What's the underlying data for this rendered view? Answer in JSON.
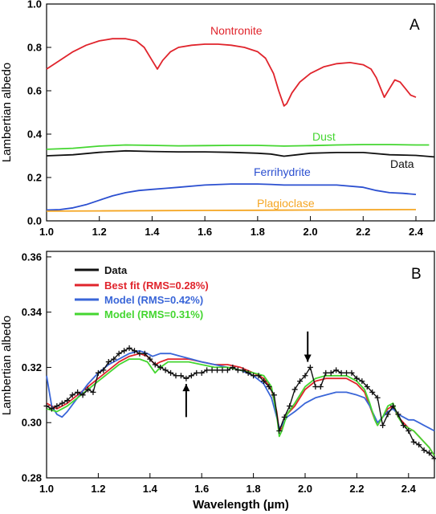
{
  "chart_data": [
    {
      "type": "line",
      "panel_label": "A",
      "ylabel": "Lambertian albedo",
      "xlim": [
        1.0,
        2.47
      ],
      "ylim": [
        0.0,
        1.0
      ],
      "x_ticks": [
        "1.0",
        "1.2",
        "1.4",
        "1.6",
        "1.8",
        "2.0",
        "2.2",
        "2.4"
      ],
      "x_tick_values": [
        1.0,
        1.2,
        1.4,
        1.6,
        1.8,
        2.0,
        2.2,
        2.4
      ],
      "y_ticks": [
        "0.0",
        "0.2",
        "0.4",
        "0.6",
        "0.8",
        "1.0"
      ],
      "y_tick_values": [
        0.0,
        0.2,
        0.4,
        0.6,
        0.8,
        1.0
      ],
      "grid": false,
      "series": [
        {
          "name": "Nontronite",
          "color": "#e0242c",
          "x": [
            1.0,
            1.05,
            1.1,
            1.15,
            1.2,
            1.25,
            1.3,
            1.34,
            1.37,
            1.4,
            1.42,
            1.44,
            1.47,
            1.5,
            1.55,
            1.6,
            1.65,
            1.7,
            1.75,
            1.8,
            1.83,
            1.86,
            1.88,
            1.9,
            1.91,
            1.93,
            1.96,
            2.0,
            2.05,
            2.1,
            2.15,
            2.2,
            2.23,
            2.25,
            2.27,
            2.28,
            2.3,
            2.32,
            2.34,
            2.36,
            2.38,
            2.4
          ],
          "y": [
            0.7,
            0.74,
            0.78,
            0.81,
            0.83,
            0.84,
            0.84,
            0.83,
            0.8,
            0.74,
            0.7,
            0.74,
            0.78,
            0.8,
            0.81,
            0.815,
            0.815,
            0.81,
            0.8,
            0.78,
            0.75,
            0.68,
            0.6,
            0.53,
            0.54,
            0.59,
            0.64,
            0.68,
            0.71,
            0.725,
            0.73,
            0.72,
            0.7,
            0.66,
            0.6,
            0.57,
            0.61,
            0.65,
            0.64,
            0.61,
            0.58,
            0.57
          ]
        },
        {
          "name": "Dust",
          "color": "#44d630",
          "x": [
            1.0,
            1.1,
            1.2,
            1.3,
            1.4,
            1.5,
            1.6,
            1.7,
            1.8,
            1.9,
            2.0,
            2.1,
            2.2,
            2.3,
            2.4,
            2.45
          ],
          "y": [
            0.33,
            0.335,
            0.345,
            0.35,
            0.348,
            0.346,
            0.347,
            0.348,
            0.348,
            0.345,
            0.347,
            0.35,
            0.352,
            0.352,
            0.35,
            0.35
          ]
        },
        {
          "name": "Data",
          "color": "#111111",
          "x": [
            1.0,
            1.1,
            1.2,
            1.3,
            1.4,
            1.5,
            1.6,
            1.7,
            1.8,
            1.85,
            1.9,
            1.95,
            2.0,
            2.1,
            2.2,
            2.3,
            2.4,
            2.47
          ],
          "y": [
            0.3,
            0.305,
            0.316,
            0.323,
            0.32,
            0.318,
            0.318,
            0.316,
            0.312,
            0.308,
            0.298,
            0.305,
            0.312,
            0.315,
            0.315,
            0.305,
            0.302,
            0.295
          ]
        },
        {
          "name": "Ferrihydrite",
          "color": "#2b4fd0",
          "x": [
            1.0,
            1.05,
            1.1,
            1.15,
            1.2,
            1.25,
            1.3,
            1.35,
            1.4,
            1.45,
            1.5,
            1.6,
            1.7,
            1.8,
            1.85,
            1.9,
            2.0,
            2.1,
            2.2,
            2.25,
            2.3,
            2.35,
            2.4
          ],
          "y": [
            0.05,
            0.052,
            0.06,
            0.075,
            0.095,
            0.115,
            0.13,
            0.14,
            0.145,
            0.15,
            0.155,
            0.165,
            0.17,
            0.17,
            0.168,
            0.165,
            0.165,
            0.165,
            0.155,
            0.14,
            0.13,
            0.127,
            0.122
          ]
        },
        {
          "name": "Plagioclase",
          "color": "#f5a623",
          "x": [
            1.0,
            1.2,
            1.4,
            1.6,
            1.8,
            2.0,
            2.2,
            2.4
          ],
          "y": [
            0.045,
            0.046,
            0.047,
            0.048,
            0.049,
            0.05,
            0.051,
            0.052
          ]
        }
      ],
      "labels": [
        {
          "text": "Nontronite",
          "color": "#e0242c"
        },
        {
          "text": "Dust",
          "color": "#44d630"
        },
        {
          "text": "Data",
          "color": "#111111"
        },
        {
          "text": "Ferrihydrite",
          "color": "#2b4fd0"
        },
        {
          "text": "Plagioclase",
          "color": "#f5a623"
        }
      ]
    },
    {
      "type": "line",
      "panel_label": "B",
      "xlabel": "Wavelength (µm)",
      "ylabel": "Lambertian albedo",
      "xlim": [
        1.0,
        2.5
      ],
      "ylim": [
        0.28,
        0.362
      ],
      "x_ticks": [
        "1.0",
        "1.2",
        "1.4",
        "1.6",
        "1.8",
        "2.0",
        "2.2",
        "2.4"
      ],
      "x_tick_values": [
        1.0,
        1.2,
        1.4,
        1.6,
        1.8,
        2.0,
        2.2,
        2.4
      ],
      "y_ticks": [
        "0.28",
        "0.30",
        "0.32",
        "0.34",
        "0.36"
      ],
      "y_tick_values": [
        0.28,
        0.3,
        0.32,
        0.34,
        0.36
      ],
      "grid": false,
      "legend_position": "top-left",
      "legend": [
        {
          "text": "Data",
          "color": "#111111"
        },
        {
          "text": "Best fit (RMS=0.28%)",
          "color": "#e0242c"
        },
        {
          "text": "Model (RMS=0.42%)",
          "color": "#3a66d8"
        },
        {
          "text": "Model (RMS=0.31%)",
          "color": "#44d630"
        }
      ],
      "data_points": {
        "color": "#111111",
        "x": [
          1.0,
          1.02,
          1.04,
          1.06,
          1.08,
          1.1,
          1.12,
          1.14,
          1.16,
          1.18,
          1.2,
          1.22,
          1.24,
          1.26,
          1.28,
          1.3,
          1.32,
          1.34,
          1.36,
          1.38,
          1.4,
          1.42,
          1.44,
          1.46,
          1.48,
          1.5,
          1.52,
          1.54,
          1.56,
          1.58,
          1.6,
          1.62,
          1.64,
          1.66,
          1.68,
          1.7,
          1.72,
          1.74,
          1.76,
          1.78,
          1.8,
          1.82,
          1.84,
          1.86,
          1.88,
          1.9,
          1.92,
          1.94,
          1.96,
          1.98,
          2.0,
          2.02,
          2.04,
          2.06,
          2.08,
          2.1,
          2.12,
          2.14,
          2.16,
          2.18,
          2.2,
          2.22,
          2.24,
          2.26,
          2.28,
          2.3,
          2.32,
          2.34,
          2.36,
          2.38,
          2.4,
          2.42,
          2.44,
          2.46,
          2.48,
          2.5
        ],
        "y": [
          0.306,
          0.305,
          0.306,
          0.307,
          0.308,
          0.31,
          0.311,
          0.31,
          0.312,
          0.311,
          0.318,
          0.319,
          0.322,
          0.323,
          0.325,
          0.326,
          0.327,
          0.326,
          0.325,
          0.325,
          0.323,
          0.321,
          0.32,
          0.319,
          0.318,
          0.317,
          0.317,
          0.316,
          0.317,
          0.318,
          0.318,
          0.319,
          0.319,
          0.319,
          0.319,
          0.319,
          0.32,
          0.319,
          0.319,
          0.318,
          0.317,
          0.317,
          0.315,
          0.313,
          0.31,
          0.297,
          0.302,
          0.306,
          0.312,
          0.315,
          0.317,
          0.32,
          0.313,
          0.313,
          0.318,
          0.318,
          0.319,
          0.318,
          0.318,
          0.318,
          0.316,
          0.315,
          0.313,
          0.311,
          0.309,
          0.299,
          0.303,
          0.306,
          0.303,
          0.299,
          0.297,
          0.293,
          0.292,
          0.29,
          0.289,
          0.287
        ]
      },
      "series": [
        {
          "name": "Best fit (RMS=0.28%)",
          "color": "#e0242c",
          "x": [
            1.0,
            1.04,
            1.08,
            1.12,
            1.16,
            1.2,
            1.24,
            1.28,
            1.32,
            1.36,
            1.39,
            1.42,
            1.44,
            1.47,
            1.5,
            1.55,
            1.6,
            1.65,
            1.7,
            1.75,
            1.8,
            1.84,
            1.87,
            1.89,
            1.9,
            1.91,
            1.93,
            1.96,
            2.0,
            2.04,
            2.08,
            2.12,
            2.16,
            2.2,
            2.23,
            2.25,
            2.27,
            2.28,
            2.3,
            2.32,
            2.34,
            2.36,
            2.38,
            2.4,
            2.42,
            2.44,
            2.46,
            2.48,
            2.5
          ],
          "y": [
            0.307,
            0.305,
            0.307,
            0.31,
            0.313,
            0.316,
            0.319,
            0.322,
            0.324,
            0.325,
            0.324,
            0.321,
            0.322,
            0.323,
            0.323,
            0.323,
            0.322,
            0.321,
            0.321,
            0.32,
            0.318,
            0.316,
            0.312,
            0.304,
            0.297,
            0.298,
            0.303,
            0.306,
            0.312,
            0.315,
            0.316,
            0.316,
            0.316,
            0.314,
            0.311,
            0.306,
            0.301,
            0.299,
            0.302,
            0.305,
            0.306,
            0.302,
            0.3,
            0.298,
            0.297,
            0.295,
            0.293,
            0.291,
            0.288
          ]
        },
        {
          "name": "Model (RMS=0.42%)",
          "color": "#3a66d8",
          "x": [
            1.0,
            1.02,
            1.04,
            1.06,
            1.08,
            1.12,
            1.16,
            1.2,
            1.24,
            1.28,
            1.32,
            1.36,
            1.39,
            1.41,
            1.44,
            1.48,
            1.52,
            1.56,
            1.6,
            1.65,
            1.7,
            1.75,
            1.8,
            1.84,
            1.87,
            1.89,
            1.9,
            1.91,
            1.93,
            1.96,
            2.0,
            2.04,
            2.08,
            2.12,
            2.16,
            2.2,
            2.23,
            2.25,
            2.27,
            2.28,
            2.3,
            2.32,
            2.34,
            2.36,
            2.38,
            2.4,
            2.42,
            2.44,
            2.46,
            2.48,
            2.5
          ],
          "y": [
            0.317,
            0.306,
            0.303,
            0.302,
            0.304,
            0.309,
            0.314,
            0.318,
            0.321,
            0.323,
            0.325,
            0.326,
            0.325,
            0.324,
            0.325,
            0.325,
            0.324,
            0.323,
            0.322,
            0.321,
            0.32,
            0.319,
            0.317,
            0.314,
            0.309,
            0.302,
            0.298,
            0.299,
            0.302,
            0.304,
            0.307,
            0.309,
            0.31,
            0.311,
            0.311,
            0.31,
            0.309,
            0.306,
            0.302,
            0.3,
            0.302,
            0.304,
            0.305,
            0.303,
            0.302,
            0.301,
            0.301,
            0.3,
            0.299,
            0.298,
            0.297
          ]
        },
        {
          "name": "Model (RMS=0.31%)",
          "color": "#44d630",
          "x": [
            1.0,
            1.04,
            1.08,
            1.12,
            1.16,
            1.2,
            1.24,
            1.28,
            1.32,
            1.36,
            1.39,
            1.42,
            1.44,
            1.47,
            1.5,
            1.55,
            1.6,
            1.65,
            1.7,
            1.75,
            1.8,
            1.84,
            1.87,
            1.89,
            1.9,
            1.91,
            1.93,
            1.96,
            2.0,
            2.04,
            2.08,
            2.12,
            2.16,
            2.2,
            2.23,
            2.25,
            2.27,
            2.28,
            2.3,
            2.32,
            2.34,
            2.36,
            2.38,
            2.4,
            2.42,
            2.44,
            2.46,
            2.48,
            2.5
          ],
          "y": [
            0.305,
            0.304,
            0.306,
            0.309,
            0.312,
            0.315,
            0.318,
            0.321,
            0.323,
            0.323,
            0.322,
            0.318,
            0.32,
            0.322,
            0.322,
            0.322,
            0.321,
            0.32,
            0.32,
            0.319,
            0.318,
            0.317,
            0.313,
            0.303,
            0.295,
            0.297,
            0.303,
            0.307,
            0.313,
            0.316,
            0.317,
            0.317,
            0.317,
            0.315,
            0.312,
            0.307,
            0.301,
            0.299,
            0.302,
            0.306,
            0.307,
            0.302,
            0.299,
            0.298,
            0.297,
            0.295,
            0.293,
            0.291,
            0.288
          ]
        }
      ],
      "arrows": [
        {
          "x": 1.54,
          "y_from": 0.302,
          "y_to": 0.314,
          "direction": "up"
        },
        {
          "x": 2.01,
          "y_from": 0.333,
          "y_to": 0.322,
          "direction": "down"
        }
      ]
    }
  ]
}
